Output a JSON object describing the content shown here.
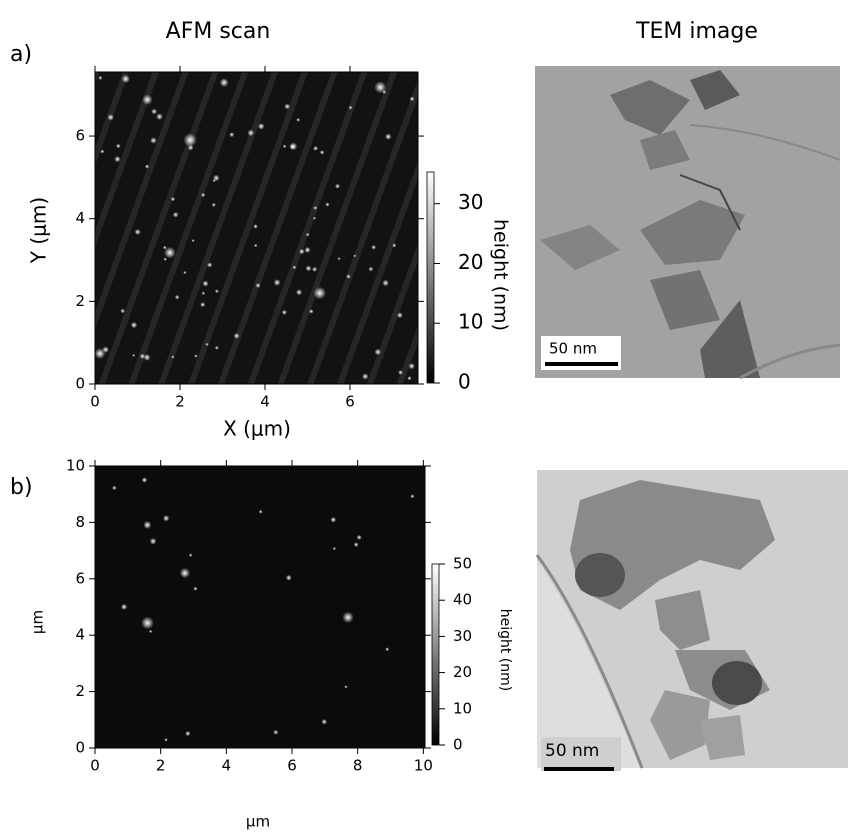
{
  "headers": {
    "afm": "AFM scan",
    "tem": "TEM image"
  },
  "panels": [
    {
      "label": "a)",
      "afm": {
        "xlabel": "X (μm)",
        "ylabel": "Y (μm)",
        "xlim": [
          0,
          7.6
        ],
        "ylim": [
          0,
          7.55
        ],
        "xticks": [
          0,
          2,
          4,
          6
        ],
        "yticks": [
          0,
          2,
          4,
          6
        ],
        "colorbar": {
          "label": "height (nm)",
          "lim": [
            0,
            35.3
          ],
          "ticks": [
            0,
            10,
            20,
            30
          ]
        }
      },
      "tem": {
        "scale_bar": "50 nm"
      }
    },
    {
      "label": "b)",
      "afm": {
        "xlabel": "μm",
        "ylabel": "μm",
        "xlim": [
          0,
          10.05
        ],
        "ylim": [
          0,
          10
        ],
        "xticks": [
          0,
          2,
          4,
          6,
          8,
          10
        ],
        "yticks": [
          0,
          2,
          4,
          6,
          8,
          10
        ],
        "colorbar": {
          "label": "height (nm)",
          "lim": [
            0,
            50
          ],
          "ticks": [
            0,
            10,
            20,
            30,
            40,
            50
          ]
        }
      },
      "tem": {
        "scale_bar": "50 nm"
      }
    }
  ]
}
